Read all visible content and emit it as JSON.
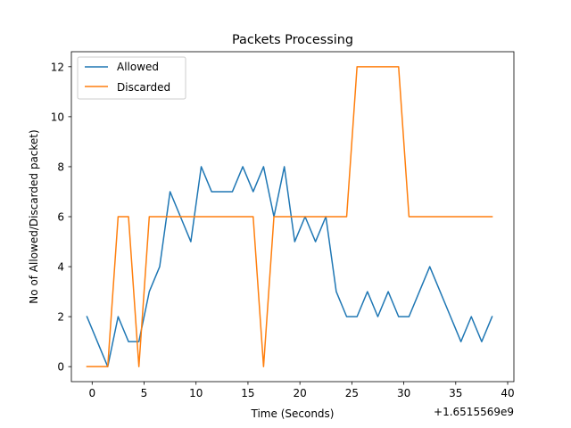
{
  "chart_data": {
    "type": "line",
    "title": "Packets Processing",
    "xlabel": "Time (Seconds)",
    "ylabel": "No of Allowed/Discarded packet)",
    "x_offset_label": "+1.6515569e9",
    "xlim": [
      -2.0,
      40.6
    ],
    "ylim": [
      -0.6,
      12.6
    ],
    "xticks": [
      0,
      5,
      10,
      15,
      20,
      25,
      30,
      35,
      40
    ],
    "xtick_labels": [
      "0",
      "5",
      "10",
      "15",
      "20",
      "25",
      "30",
      "35",
      "40"
    ],
    "yticks": [
      0,
      2,
      4,
      6,
      8,
      10,
      12
    ],
    "ytick_labels": [
      "0",
      "2",
      "4",
      "6",
      "8",
      "10",
      "12"
    ],
    "grid": false,
    "legend_position": "upper left",
    "x": [
      -0.5,
      0.5,
      1.5,
      2.5,
      3.5,
      4.5,
      5.5,
      6.5,
      7.5,
      8.5,
      9.5,
      10.5,
      11.5,
      12.5,
      13.5,
      14.5,
      15.5,
      16.5,
      17.5,
      18.5,
      19.5,
      20.5,
      21.5,
      22.5,
      23.5,
      24.5,
      25.5,
      26.5,
      27.5,
      28.5,
      29.5,
      30.5,
      31.5,
      32.5,
      33.5,
      34.5,
      35.5,
      36.5,
      37.5,
      38.5
    ],
    "series": [
      {
        "name": "Allowed",
        "color": "#1f77b4",
        "values": [
          2,
          1,
          0,
          2,
          1,
          1,
          3,
          4,
          7,
          6,
          5,
          8,
          7,
          7,
          7,
          8,
          7,
          8,
          6,
          8,
          5,
          6,
          5,
          6,
          3,
          2,
          2,
          3,
          2,
          3,
          2,
          2,
          3,
          4,
          3,
          2,
          1,
          2,
          1,
          2
        ]
      },
      {
        "name": "Discarded",
        "color": "#ff7f0e",
        "values": [
          0,
          0,
          0,
          6,
          6,
          0,
          6,
          6,
          6,
          6,
          6,
          6,
          6,
          6,
          6,
          6,
          6,
          0,
          6,
          6,
          6,
          6,
          6,
          6,
          6,
          6,
          12,
          12,
          12,
          12,
          12,
          6,
          6,
          6,
          6,
          6,
          6,
          6,
          6,
          6
        ]
      }
    ]
  }
}
